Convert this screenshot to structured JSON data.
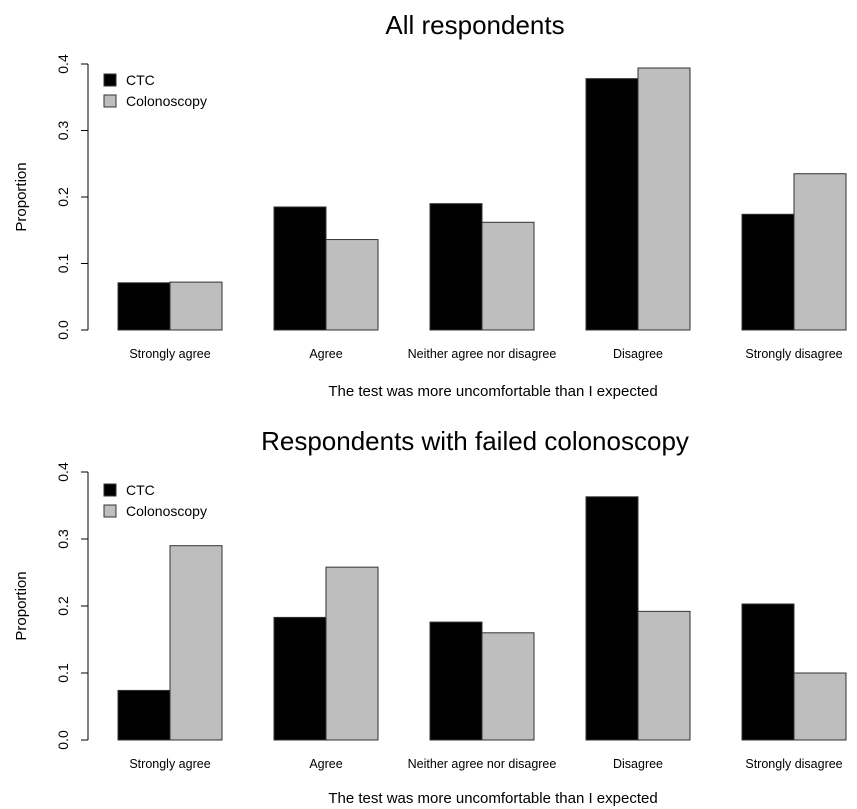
{
  "chart_data": [
    {
      "type": "bar",
      "title": "All respondents",
      "xlabel": "The test was more uncomfortable than I expected",
      "ylabel": "Proportion",
      "ylim": [
        0,
        0.4
      ],
      "yticks": [
        "0.0",
        "0.1",
        "0.2",
        "0.3",
        "0.4"
      ],
      "categories": [
        "Strongly agree",
        "Agree",
        "Neither agree nor disagree",
        "Disagree",
        "Strongly disagree"
      ],
      "series": [
        {
          "name": "CTC",
          "color": "#000000",
          "values": [
            0.071,
            0.185,
            0.19,
            0.378,
            0.174
          ]
        },
        {
          "name": "Colonoscopy",
          "color": "#bebebe",
          "values": [
            0.072,
            0.136,
            0.162,
            0.394,
            0.235
          ]
        }
      ],
      "legend": "top-left"
    },
    {
      "type": "bar",
      "title": "Respondents with failed colonoscopy",
      "xlabel": "The test was more uncomfortable than I expected",
      "ylabel": "Proportion",
      "ylim": [
        0,
        0.4
      ],
      "yticks": [
        "0.0",
        "0.1",
        "0.2",
        "0.3",
        "0.4"
      ],
      "categories": [
        "Strongly agree",
        "Agree",
        "Neither agree nor disagree",
        "Disagree",
        "Strongly disagree"
      ],
      "series": [
        {
          "name": "CTC",
          "color": "#000000",
          "values": [
            0.074,
            0.183,
            0.176,
            0.363,
            0.203
          ]
        },
        {
          "name": "Colonoscopy",
          "color": "#bebebe",
          "values": [
            0.29,
            0.258,
            0.16,
            0.192,
            0.1
          ]
        }
      ],
      "legend": "top-left"
    }
  ]
}
